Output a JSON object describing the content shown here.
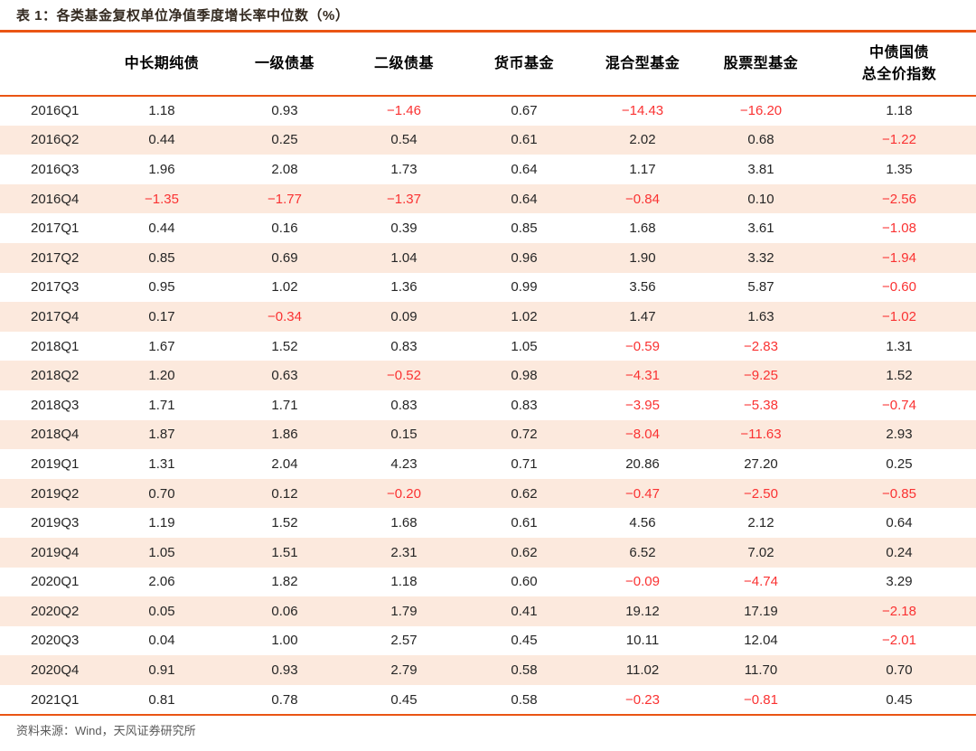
{
  "chart_data": {
    "type": "table",
    "title": "表 1：各类基金复权单位净值季度增长率中位数（%）",
    "source": "资料来源：Wind，天风证券研究所",
    "columns": [
      "",
      "中长期纯债",
      "一级债基",
      "二级债基",
      "货币基金",
      "混合型基金",
      "股票型基金",
      "中债国债\n总全价指数"
    ],
    "rows": [
      [
        "2016Q1",
        "1.18",
        "0.93",
        "−1.46",
        "0.67",
        "−14.43",
        "−16.20",
        "1.18"
      ],
      [
        "2016Q2",
        "0.44",
        "0.25",
        "0.54",
        "0.61",
        "2.02",
        "0.68",
        "−1.22"
      ],
      [
        "2016Q3",
        "1.96",
        "2.08",
        "1.73",
        "0.64",
        "1.17",
        "3.81",
        "1.35"
      ],
      [
        "2016Q4",
        "−1.35",
        "−1.77",
        "−1.37",
        "0.64",
        "−0.84",
        "0.10",
        "−2.56"
      ],
      [
        "2017Q1",
        "0.44",
        "0.16",
        "0.39",
        "0.85",
        "1.68",
        "3.61",
        "−1.08"
      ],
      [
        "2017Q2",
        "0.85",
        "0.69",
        "1.04",
        "0.96",
        "1.90",
        "3.32",
        "−1.94"
      ],
      [
        "2017Q3",
        "0.95",
        "1.02",
        "1.36",
        "0.99",
        "3.56",
        "5.87",
        "−0.60"
      ],
      [
        "2017Q4",
        "0.17",
        "−0.34",
        "0.09",
        "1.02",
        "1.47",
        "1.63",
        "−1.02"
      ],
      [
        "2018Q1",
        "1.67",
        "1.52",
        "0.83",
        "1.05",
        "−0.59",
        "−2.83",
        "1.31"
      ],
      [
        "2018Q2",
        "1.20",
        "0.63",
        "−0.52",
        "0.98",
        "−4.31",
        "−9.25",
        "1.52"
      ],
      [
        "2018Q3",
        "1.71",
        "1.71",
        "0.83",
        "0.83",
        "−3.95",
        "−5.38",
        "−0.74"
      ],
      [
        "2018Q4",
        "1.87",
        "1.86",
        "0.15",
        "0.72",
        "−8.04",
        "−11.63",
        "2.93"
      ],
      [
        "2019Q1",
        "1.31",
        "2.04",
        "4.23",
        "0.71",
        "20.86",
        "27.20",
        "0.25"
      ],
      [
        "2019Q2",
        "0.70",
        "0.12",
        "−0.20",
        "0.62",
        "−0.47",
        "−2.50",
        "−0.85"
      ],
      [
        "2019Q3",
        "1.19",
        "1.52",
        "1.68",
        "0.61",
        "4.56",
        "2.12",
        "0.64"
      ],
      [
        "2019Q4",
        "1.05",
        "1.51",
        "2.31",
        "0.62",
        "6.52",
        "7.02",
        "0.24"
      ],
      [
        "2020Q1",
        "2.06",
        "1.82",
        "1.18",
        "0.60",
        "−0.09",
        "−4.74",
        "3.29"
      ],
      [
        "2020Q2",
        "0.05",
        "0.06",
        "1.79",
        "0.41",
        "19.12",
        "17.19",
        "−2.18"
      ],
      [
        "2020Q3",
        "0.04",
        "1.00",
        "2.57",
        "0.45",
        "10.11",
        "12.04",
        "−2.01"
      ],
      [
        "2020Q4",
        "0.91",
        "0.93",
        "2.79",
        "0.58",
        "11.02",
        "11.70",
        "0.70"
      ],
      [
        "2021Q1",
        "0.81",
        "0.78",
        "0.45",
        "0.58",
        "−0.23",
        "−0.81",
        "0.45"
      ]
    ],
    "layout": {
      "zebra_striping": true,
      "first_data_row_background": "white",
      "negative_values_colored": true
    }
  },
  "colors": {
    "accent_orange": "#EA5514",
    "zebra_peach": "#FCE9DD",
    "negative_red": "#FA3232"
  }
}
